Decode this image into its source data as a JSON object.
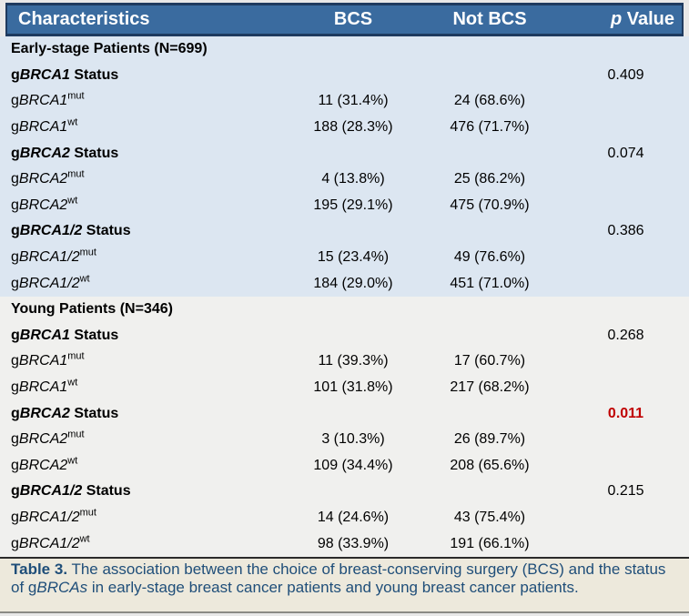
{
  "colors": {
    "header_bg": "#3A6B9F",
    "header_text": "#FFFFFF",
    "border_navy": "#1E3A5F",
    "page_margin_bg": "#E8E8E8",
    "caption_bg": "#EDE9DC",
    "caption_text": "#1F4E79",
    "caption_divider": "#2B2B2B",
    "p_highlight": "#C00000",
    "text": "#000000"
  },
  "table": {
    "columns": [
      {
        "italic_prefix": "",
        "text": "Characteristics"
      },
      {
        "italic_prefix": "",
        "text": "BCS"
      },
      {
        "italic_prefix": "",
        "text": "Not BCS"
      },
      {
        "italic_prefix": "p",
        "text": " Value"
      }
    ],
    "sections": [
      {
        "id": "early-stage",
        "title": "Early-stage Patients (N=699)",
        "bg": "#DCE6F1",
        "rows": [
          {
            "kind": "status",
            "prefix": "g",
            "gene": "BRCA1",
            "sup": "",
            "suffix": " Status",
            "bcs": "",
            "not_bcs": "",
            "p": "0.409",
            "p_style": "normal"
          },
          {
            "kind": "data",
            "prefix": "g",
            "gene": "BRCA1",
            "sup": "mut",
            "suffix": "",
            "bcs": "11 (31.4%)",
            "not_bcs": "24 (68.6%)",
            "p": "",
            "p_style": "normal"
          },
          {
            "kind": "data",
            "prefix": "g",
            "gene": "BRCA1",
            "sup": "wt",
            "suffix": "",
            "bcs": "188 (28.3%)",
            "not_bcs": "476 (71.7%)",
            "p": "",
            "p_style": "normal"
          },
          {
            "kind": "status",
            "prefix": "g",
            "gene": "BRCA2",
            "sup": "",
            "suffix": " Status",
            "bcs": "",
            "not_bcs": "",
            "p": "0.074",
            "p_style": "normal"
          },
          {
            "kind": "data",
            "prefix": "g",
            "gene": "BRCA2",
            "sup": "mut",
            "suffix": "",
            "bcs": "4 (13.8%)",
            "not_bcs": "25 (86.2%)",
            "p": "",
            "p_style": "normal"
          },
          {
            "kind": "data",
            "prefix": "g",
            "gene": "BRCA2",
            "sup": "wt",
            "suffix": "",
            "bcs": "195 (29.1%)",
            "not_bcs": "475 (70.9%)",
            "p": "",
            "p_style": "normal"
          },
          {
            "kind": "status",
            "prefix": "g",
            "gene": "BRCA1/2",
            "sup": "",
            "suffix": " Status",
            "bcs": "",
            "not_bcs": "",
            "p": "0.386",
            "p_style": "normal"
          },
          {
            "kind": "data",
            "prefix": "g",
            "gene": "BRCA1/2",
            "sup": "mut",
            "suffix": "",
            "bcs": "15 (23.4%)",
            "not_bcs": "49 (76.6%)",
            "p": "",
            "p_style": "normal"
          },
          {
            "kind": "data",
            "prefix": "g",
            "gene": "BRCA1/2",
            "sup": "wt",
            "suffix": "",
            "bcs": "184 (29.0%)",
            "not_bcs": "451 (71.0%)",
            "p": "",
            "p_style": "normal"
          }
        ]
      },
      {
        "id": "young",
        "title": "Young Patients (N=346)",
        "bg": "#F0F0EE",
        "rows": [
          {
            "kind": "status",
            "prefix": "g",
            "gene": "BRCA1",
            "sup": "",
            "suffix": " Status",
            "bcs": "",
            "not_bcs": "",
            "p": "0.268",
            "p_style": "normal"
          },
          {
            "kind": "data",
            "prefix": "g",
            "gene": "BRCA1",
            "sup": "mut",
            "suffix": "",
            "bcs": "11 (39.3%)",
            "not_bcs": "17 (60.7%)",
            "p": "",
            "p_style": "normal"
          },
          {
            "kind": "data",
            "prefix": "g",
            "gene": "BRCA1",
            "sup": "wt",
            "suffix": "",
            "bcs": "101 (31.8%)",
            "not_bcs": "217 (68.2%)",
            "p": "",
            "p_style": "normal"
          },
          {
            "kind": "status",
            "prefix": "g",
            "gene": "BRCA2",
            "sup": "",
            "suffix": " Status",
            "bcs": "",
            "not_bcs": "",
            "p": "0.011",
            "p_style": "highlight"
          },
          {
            "kind": "data",
            "prefix": "g",
            "gene": "BRCA2",
            "sup": "mut",
            "suffix": "",
            "bcs": "3 (10.3%)",
            "not_bcs": "26 (89.7%)",
            "p": "",
            "p_style": "normal"
          },
          {
            "kind": "data",
            "prefix": "g",
            "gene": "BRCA2",
            "sup": "wt",
            "suffix": "",
            "bcs": "109 (34.4%)",
            "not_bcs": "208 (65.6%)",
            "p": "",
            "p_style": "normal"
          },
          {
            "kind": "status",
            "prefix": "g",
            "gene": "BRCA1/2",
            "sup": "",
            "suffix": " Status",
            "bcs": "",
            "not_bcs": "",
            "p": "0.215",
            "p_style": "normal"
          },
          {
            "kind": "data",
            "prefix": "g",
            "gene": "BRCA1/2",
            "sup": "mut",
            "suffix": "",
            "bcs": "14 (24.6%)",
            "not_bcs": "43 (75.4%)",
            "p": "",
            "p_style": "normal"
          },
          {
            "kind": "data",
            "prefix": "g",
            "gene": "BRCA1/2",
            "sup": "wt",
            "suffix": "",
            "bcs": "98 (33.9%)",
            "not_bcs": "191 (66.1%)",
            "p": "",
            "p_style": "normal"
          }
        ]
      }
    ]
  },
  "caption": {
    "segments": [
      {
        "text": "Table 3.",
        "style": "bold"
      },
      {
        "text": " The association between the choice of breast-conserving surgery (BCS) and the status of g",
        "style": "normal"
      },
      {
        "text": "BRCAs",
        "style": "italic"
      },
      {
        "text": " in early-stage breast cancer patients and young breast cancer patients.",
        "style": "normal"
      }
    ]
  }
}
